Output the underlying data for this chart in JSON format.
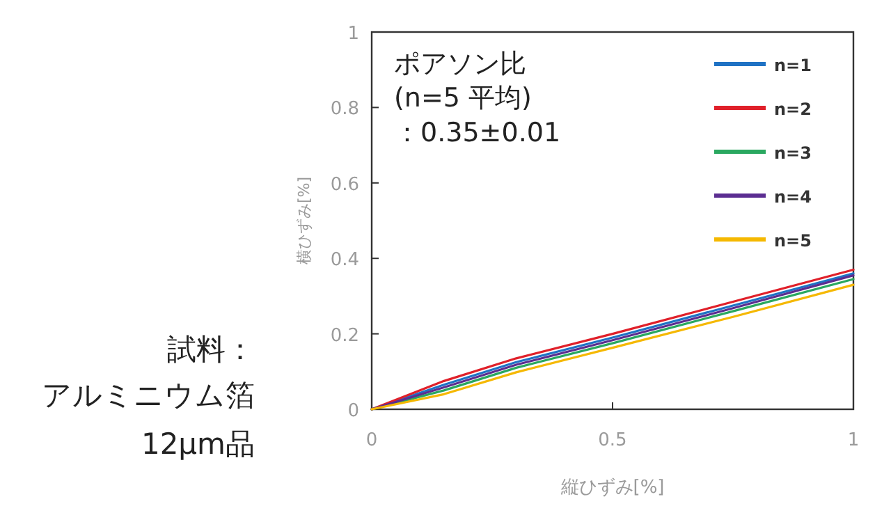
{
  "chart_data": {
    "type": "line",
    "xlabel": "縦ひずみ[%]",
    "ylabel": "横ひずみ[%]",
    "x": [
      0,
      0.15,
      0.3,
      0.5,
      0.75,
      1
    ],
    "xlim": [
      0,
      1
    ],
    "xticks": [
      0,
      0.5,
      1
    ],
    "ylim": [
      0,
      1
    ],
    "yticks": [
      0,
      0.2,
      0.4,
      0.6,
      0.8,
      1
    ],
    "legend": "top right",
    "grid": false,
    "series": [
      {
        "name": "n=1",
        "color": "#1f72c4",
        "values": [
          0,
          0.065,
          0.125,
          0.19,
          0.275,
          0.36
        ]
      },
      {
        "name": "n=2",
        "color": "#e0202a",
        "values": [
          0,
          0.075,
          0.135,
          0.2,
          0.285,
          0.37
        ]
      },
      {
        "name": "n=3",
        "color": "#2aa860",
        "values": [
          0,
          0.05,
          0.11,
          0.175,
          0.26,
          0.345
        ]
      },
      {
        "name": "n=4",
        "color": "#5b2d91",
        "values": [
          0,
          0.058,
          0.118,
          0.183,
          0.268,
          0.355
        ]
      },
      {
        "name": "n=5",
        "color": "#f5b800",
        "values": [
          0,
          0.04,
          0.098,
          0.163,
          0.245,
          0.33
        ]
      }
    ],
    "annotations": [
      "ポアソン比\n(n=5 平均)\n：0.35±0.01",
      "試料：",
      "アルミニウム箔",
      "12μm品"
    ]
  }
}
